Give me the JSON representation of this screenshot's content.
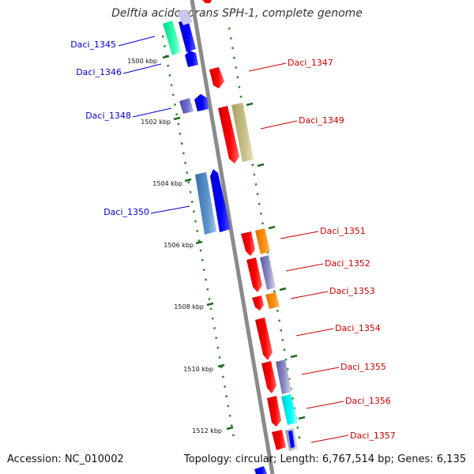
{
  "title": "Delftia acidovorans SPH-1, complete genome",
  "accession": "Accession: NC_010002",
  "topology": "Topology: circular; Length: 6,767,514 bp; Genes: 6,135",
  "colors": {
    "backbone": "#8a8a8a",
    "tick_major": "#1e6b1e",
    "tick_minor": "#2e8b2e",
    "left_label": "#0000cc",
    "right_label": "#cc0000"
  },
  "kbp_marks": [
    {
      "label": "1500 kbp"
    },
    {
      "label": "1502 kbp"
    },
    {
      "label": "1504 kbp"
    },
    {
      "label": "1506 kbp"
    },
    {
      "label": "1508 kbp"
    },
    {
      "label": "1510 kbp"
    },
    {
      "label": "1512 kbp"
    }
  ],
  "gene_labels_left": [
    {
      "text": "Daci_1345"
    },
    {
      "text": "Daci_1346"
    },
    {
      "text": "Daci_1348"
    },
    {
      "text": "Daci_1350"
    }
  ],
  "gene_labels_right": [
    {
      "text": "Daci_1347"
    },
    {
      "text": "Daci_1349"
    },
    {
      "text": "Daci_1351"
    },
    {
      "text": "Daci_1352"
    },
    {
      "text": "Daci_1353"
    },
    {
      "text": "Daci_1354"
    },
    {
      "text": "Daci_1355"
    },
    {
      "text": "Daci_1356"
    },
    {
      "text": "Daci_1357"
    }
  ]
}
